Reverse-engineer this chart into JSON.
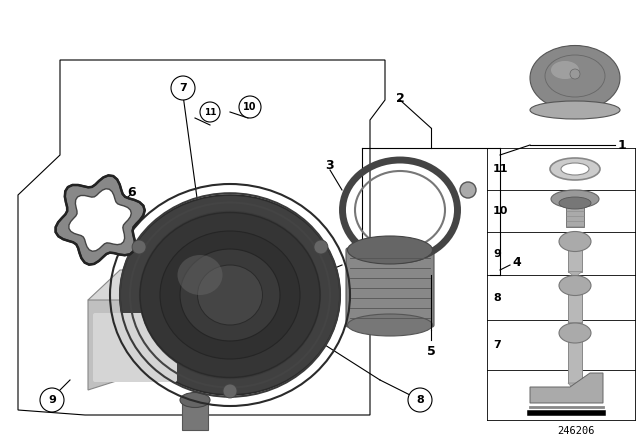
{
  "bg_color": "#ffffff",
  "line_color": "#000000",
  "text_color": "#000000",
  "diagram_number": "246206",
  "gray_dark": "#3a3a3a",
  "gray_mid": "#888888",
  "gray_light": "#cccccc",
  "silver": "#c8c8c8",
  "dark_gray": "#555555"
}
